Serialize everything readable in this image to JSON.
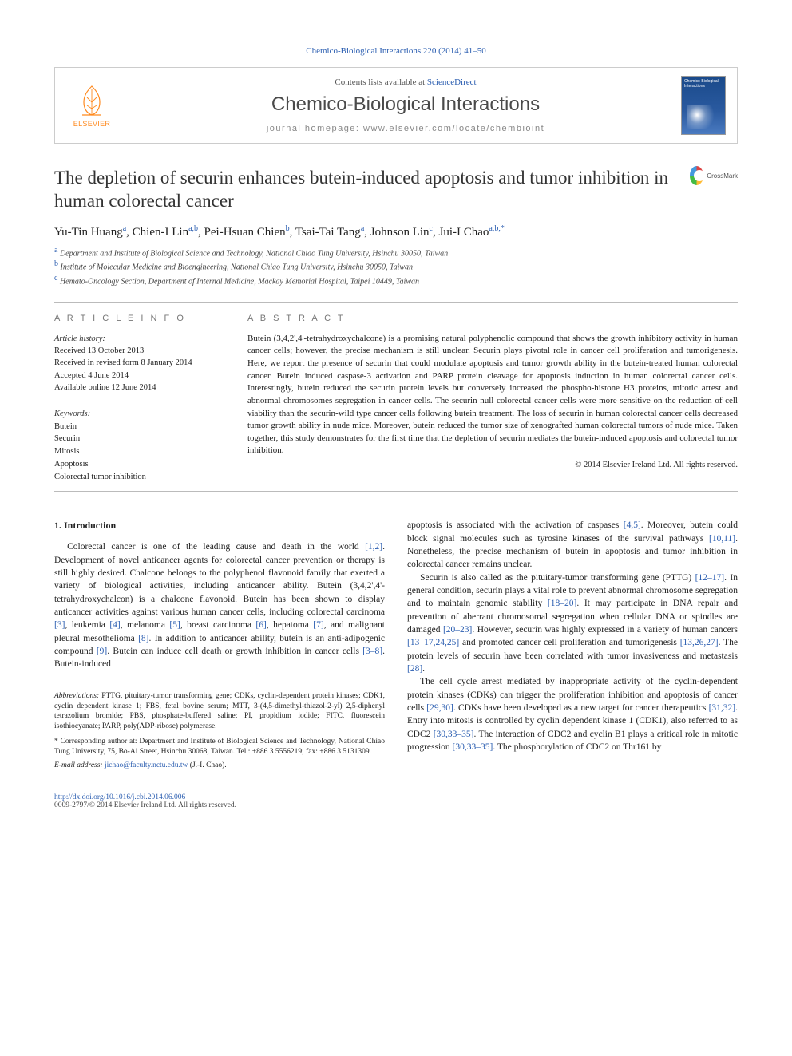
{
  "citation": "Chemico-Biological Interactions 220 (2014) 41–50",
  "header": {
    "contents_prefix": "Contents lists available at ",
    "contents_link": "ScienceDirect",
    "journal": "Chemico-Biological Interactions",
    "homepage_prefix": "journal homepage: ",
    "homepage": "www.elsevier.com/locate/chembioint",
    "publisher": "ELSEVIER",
    "cover_label": "Chemico-Biological Interactions"
  },
  "crossmark": "CrossMark",
  "title": "The depletion of securin enhances butein-induced apoptosis and tumor inhibition in human colorectal cancer",
  "authors_html": "Yu-Tin Huang<span class='sup'>a</span>, Chien-I Lin<span class='sup'>a,b</span>, Pei-Hsuan Chien<span class='sup'>b</span>, Tsai-Tai Tang<span class='sup'>a</span>, Johnson Lin<span class='sup'>c</span>, Jui-I Chao<span class='sup'>a,b,</span><span class='sup'>*</span>",
  "affiliations": [
    {
      "sup": "a",
      "text": "Department and Institute of Biological Science and Technology, National Chiao Tung University, Hsinchu 30050, Taiwan"
    },
    {
      "sup": "b",
      "text": "Institute of Molecular Medicine and Bioengineering, National Chiao Tung University, Hsinchu 30050, Taiwan"
    },
    {
      "sup": "c",
      "text": "Hemato-Oncology Section, Department of Internal Medicine, Mackay Memorial Hospital, Taipei 10449, Taiwan"
    }
  ],
  "article_info": {
    "heading": "A R T I C L E   I N F O",
    "history_label": "Article history:",
    "history": [
      "Received 13 October 2013",
      "Received in revised form 8 January 2014",
      "Accepted 4 June 2014",
      "Available online 12 June 2014"
    ],
    "keywords_label": "Keywords:",
    "keywords": [
      "Butein",
      "Securin",
      "Mitosis",
      "Apoptosis",
      "Colorectal tumor inhibition"
    ]
  },
  "abstract": {
    "heading": "A B S T R A C T",
    "text": "Butein (3,4,2',4'-tetrahydroxychalcone) is a promising natural polyphenolic compound that shows the growth inhibitory activity in human cancer cells; however, the precise mechanism is still unclear. Securin plays pivotal role in cancer cell proliferation and tumorigenesis. Here, we report the presence of securin that could modulate apoptosis and tumor growth ability in the butein-treated human colorectal cancer. Butein induced caspase-3 activation and PARP protein cleavage for apoptosis induction in human colorectal cancer cells. Interestingly, butein reduced the securin protein levels but conversely increased the phospho-histone H3 proteins, mitotic arrest and abnormal chromosomes segregation in cancer cells. The securin-null colorectal cancer cells were more sensitive on the reduction of cell viability than the securin-wild type cancer cells following butein treatment. The loss of securin in human colorectal cancer cells decreased tumor growth ability in nude mice. Moreover, butein reduced the tumor size of xenografted human colorectal tumors of nude mice. Taken together, this study demonstrates for the first time that the depletion of securin mediates the butein-induced apoptosis and colorectal tumor inhibition.",
    "copyright": "© 2014 Elsevier Ireland Ltd. All rights reserved."
  },
  "intro": {
    "heading": "1. Introduction",
    "p1_html": "Colorectal cancer is one of the leading cause and death in the world <span class='ref'>[1,2]</span>. Development of novel anticancer agents for colorectal cancer prevention or therapy is still highly desired. Chalcone belongs to the polyphenol flavonoid family that exerted a variety of biological activities, including anticancer ability. Butein (3,4,2',4'-tetrahydroxychalcon) is a chalcone flavonoid. Butein has been shown to display anticancer activities against various human cancer cells, including colorectal carcinoma <span class='ref'>[3]</span>, leukemia <span class='ref'>[4]</span>, melanoma <span class='ref'>[5]</span>, breast carcinoma <span class='ref'>[6]</span>, hepatoma <span class='ref'>[7]</span>, and malignant pleural mesothelioma <span class='ref'>[8]</span>. In addition to anticancer ability, butein is an anti-adipogenic compound <span class='ref'>[9]</span>. Butein can induce cell death or growth inhibition in cancer cells <span class='ref'>[3–8]</span>. Butein-induced",
    "p2_html": "apoptosis is associated with the activation of caspases <span class='ref'>[4,5]</span>. Moreover, butein could block signal molecules such as tyrosine kinases of the survival pathways <span class='ref'>[10,11]</span>. Nonetheless, the precise mechanism of butein in apoptosis and tumor inhibition in colorectal cancer remains unclear.",
    "p3_html": "Securin is also called as the pituitary-tumor transforming gene (PTTG) <span class='ref'>[12–17]</span>. In general condition, securin plays a vital role to prevent abnormal chromosome segregation and to maintain genomic stability <span class='ref'>[18–20]</span>. It may participate in DNA repair and prevention of aberrant chromosomal segregation when cellular DNA or spindles are damaged <span class='ref'>[20–23]</span>. However, securin was highly expressed in a variety of human cancers <span class='ref'>[13–17,24,25]</span> and promoted cancer cell proliferation and tumorigenesis <span class='ref'>[13,26,27]</span>. The protein levels of securin have been correlated with tumor invasiveness and metastasis <span class='ref'>[28]</span>.",
    "p4_html": "The cell cycle arrest mediated by inappropriate activity of the cyclin-dependent protein kinases (CDKs) can trigger the proliferation inhibition and apoptosis of cancer cells <span class='ref'>[29,30]</span>. CDKs have been developed as a new target for cancer therapeutics <span class='ref'>[31,32]</span>. Entry into mitosis is controlled by cyclin dependent kinase 1 (CDK1), also referred to as CDC2 <span class='ref'>[30,33–35]</span>. The interaction of CDC2 and cyclin B1 plays a critical role in mitotic progression <span class='ref'>[30,33–35]</span>. The phosphorylation of CDC2 on Thr161 by"
  },
  "footnotes": {
    "abbr_label": "Abbreviations:",
    "abbr_text": " PTTG, pituitary-tumor transforming gene; CDKs, cyclin-dependent protein kinases; CDK1, cyclin dependent kinase 1; FBS, fetal bovine serum; MTT, 3-(4,5-dimethyl-thiazol-2-yl) 2,5-diphenyl tetrazolium bromide; PBS, phosphate-buffered saline; PI, propidium iodide; FITC, fluorescein isothiocyanate; PARP, poly(ADP-ribose) polymerase.",
    "corr_label": "* Corresponding author at: ",
    "corr_text": "Department and Institute of Biological Science and Technology, National Chiao Tung University, 75, Bo-Ai Street, Hsinchu 30068, Taiwan. Tel.: +886 3 5556219; fax: +886 3 5131309.",
    "email_label": "E-mail address: ",
    "email": "jichao@faculty.nctu.edu.tw",
    "email_suffix": " (J.-I. Chao)."
  },
  "footer": {
    "doi": "http://dx.doi.org/10.1016/j.cbi.2014.06.006",
    "copy": "0009-2797/© 2014 Elsevier Ireland Ltd. All rights reserved."
  },
  "colors": {
    "link": "#2a5db0",
    "elsevier_orange": "#ff8a1f",
    "text": "#222222",
    "rule": "#bbbbbb"
  }
}
